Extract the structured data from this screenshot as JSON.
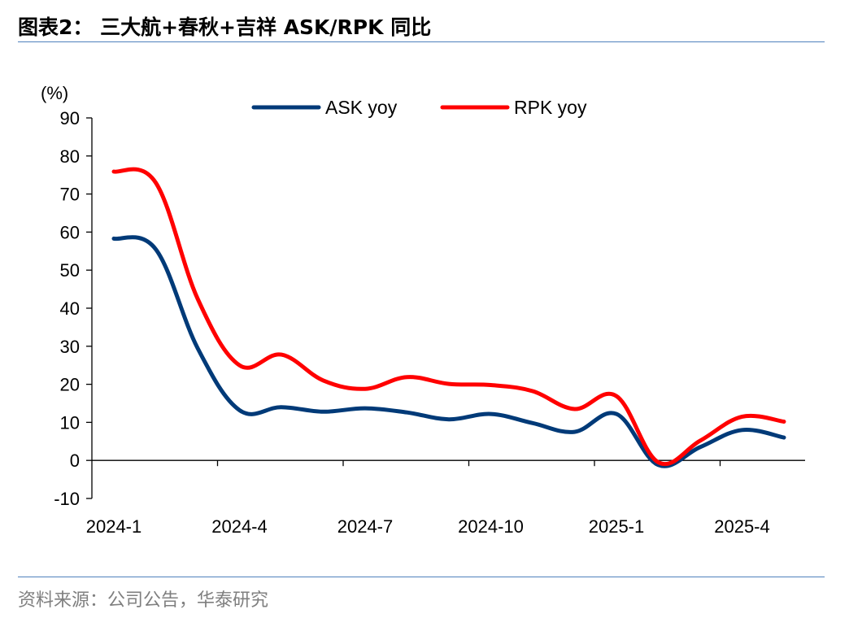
{
  "header": {
    "title": "图表2：  三大航+春秋+吉祥 ASK/RPK 同比"
  },
  "footer": {
    "source": "资料来源：公司公告，华泰研究"
  },
  "chart_data": {
    "type": "line",
    "ylabel": "(%)",
    "ylim": [
      -10,
      90
    ],
    "yticks": [
      "-10",
      "0",
      "10",
      "20",
      "30",
      "40",
      "50",
      "60",
      "70",
      "80",
      "90"
    ],
    "x": [
      "2024-1",
      "2024-2",
      "2024-3",
      "2024-4",
      "2024-5",
      "2024-6",
      "2024-7",
      "2024-8",
      "2024-9",
      "2024-10",
      "2024-11",
      "2024-12",
      "2025-1",
      "2025-2",
      "2025-3",
      "2025-4",
      "2025-5"
    ],
    "xtick_labels": [
      "2024-1",
      "2024-4",
      "2024-7",
      "2024-10",
      "2025-1",
      "2025-4"
    ],
    "legend_position": "top-center",
    "grid": false,
    "series": [
      {
        "name": "ASK yoy",
        "color": "#003a78",
        "values": [
          58.3,
          55.5,
          29.5,
          13.2,
          14.0,
          12.8,
          13.7,
          12.6,
          10.8,
          12.2,
          9.8,
          7.5,
          12.2,
          -1.2,
          3.5,
          8.0,
          6.0
        ]
      },
      {
        "name": "RPK yoy",
        "color": "#ff0000",
        "values": [
          75.9,
          73.0,
          42.5,
          25.0,
          27.8,
          21.0,
          18.8,
          21.9,
          20.1,
          19.8,
          18.2,
          13.5,
          16.9,
          -0.5,
          5.2,
          11.5,
          10.2
        ]
      }
    ]
  }
}
